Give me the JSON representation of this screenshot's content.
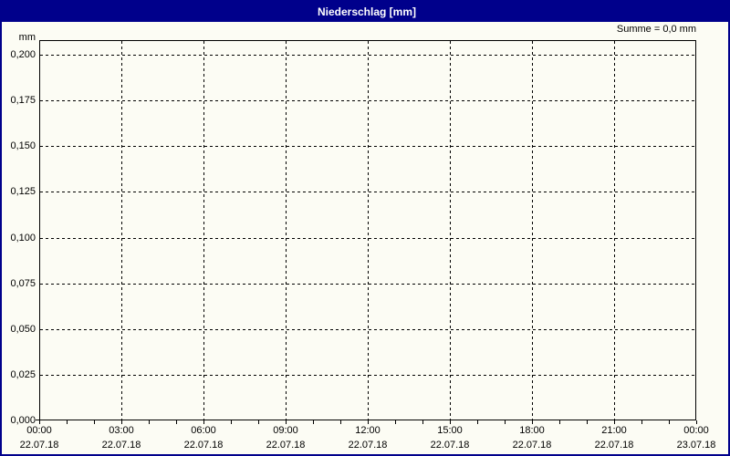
{
  "window": {
    "title": "Niederschlag [mm]"
  },
  "header": {
    "summary_label": "Summe = 0,0 mm"
  },
  "chart_data": {
    "type": "line",
    "title": "Niederschlag [mm]",
    "subtitle": "",
    "unit_label": "mm",
    "ylabel": "mm",
    "xlabel": "",
    "sum_annotation": "Summe = 0,0 mm",
    "sum_value_mm": 0.0,
    "grid": "dashed",
    "legend": "none",
    "ylim": [
      0,
      0.207
    ],
    "xlim_hours": [
      0,
      24
    ],
    "y_ticks": [
      {
        "value": 0.0,
        "label": "0,000"
      },
      {
        "value": 0.025,
        "label": "0,025"
      },
      {
        "value": 0.05,
        "label": "0,050"
      },
      {
        "value": 0.075,
        "label": "0,075"
      },
      {
        "value": 0.1,
        "label": "0,100"
      },
      {
        "value": 0.125,
        "label": "0,125"
      },
      {
        "value": 0.15,
        "label": "0,150"
      },
      {
        "value": 0.175,
        "label": "0,175"
      },
      {
        "value": 0.2,
        "label": "0,200"
      }
    ],
    "x_major_ticks": [
      {
        "hour": 0,
        "time": "00:00",
        "date": "22.07.18"
      },
      {
        "hour": 3,
        "time": "03:00",
        "date": "22.07.18"
      },
      {
        "hour": 6,
        "time": "06:00",
        "date": "22.07.18"
      },
      {
        "hour": 9,
        "time": "09:00",
        "date": "22.07.18"
      },
      {
        "hour": 12,
        "time": "12:00",
        "date": "22.07.18"
      },
      {
        "hour": 15,
        "time": "15:00",
        "date": "22.07.18"
      },
      {
        "hour": 18,
        "time": "18:00",
        "date": "22.07.18"
      },
      {
        "hour": 21,
        "time": "21:00",
        "date": "22.07.18"
      },
      {
        "hour": 24,
        "time": "00:00",
        "date": "23.07.18"
      }
    ],
    "x_minor_tick_every_hours": 1,
    "series": [
      {
        "name": "Niederschlag",
        "values": []
      }
    ]
  },
  "colors": {
    "title_bar": "#00008b",
    "title_text": "#ffffff",
    "window_frame": "#00008b",
    "background": "#fcfcf4",
    "plot_border": "#000000",
    "grid_line": "#000000",
    "label_text": "#000000"
  }
}
